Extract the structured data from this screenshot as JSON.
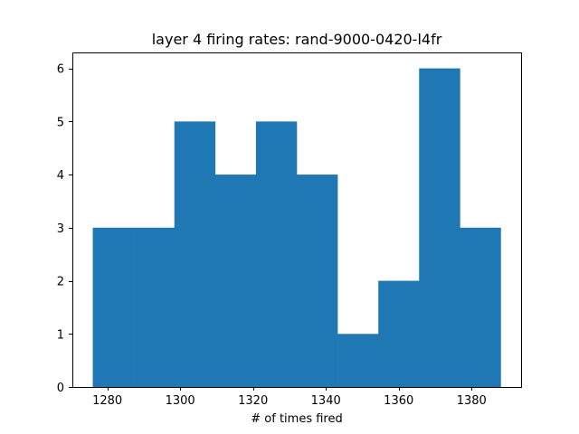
{
  "chart_data": {
    "type": "bar",
    "subtype": "histogram",
    "title": "layer 4 firing rates: rand-9000-0420-l4fr",
    "xlabel": "# of times fired",
    "ylabel": "",
    "bin_edges": [
      1276.0,
      1287.2,
      1298.4,
      1309.6,
      1320.8,
      1332.0,
      1343.2,
      1354.4,
      1365.6,
      1376.8,
      1388.0
    ],
    "values": [
      3,
      3,
      5,
      4,
      5,
      4,
      1,
      2,
      6,
      3
    ],
    "xlim": [
      1270.4,
      1393.6
    ],
    "ylim": [
      0,
      6.3
    ],
    "xticks": [
      1280,
      1300,
      1320,
      1340,
      1360,
      1380
    ],
    "yticks": [
      0,
      1,
      2,
      3,
      4,
      5,
      6
    ],
    "bar_color": "#1f77b4",
    "grid": false,
    "legend": "none"
  }
}
